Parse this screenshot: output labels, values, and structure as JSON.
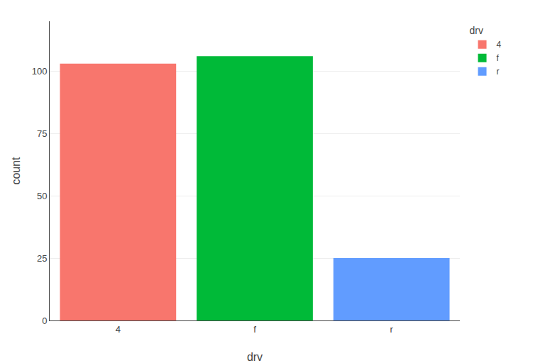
{
  "chart_data": {
    "type": "bar",
    "categories": [
      "4",
      "f",
      "r"
    ],
    "values": [
      103,
      106,
      25
    ],
    "colors": [
      "#F8766D",
      "#00BA38",
      "#619CFF"
    ],
    "legend_labels": [
      "4",
      "f",
      "r"
    ],
    "legend_title": "drv",
    "legend": "right",
    "xlabel": "drv",
    "ylabel": "count",
    "ylim": [
      0,
      120
    ],
    "yticks": [
      0,
      25,
      50,
      75,
      100
    ],
    "grid": true
  }
}
